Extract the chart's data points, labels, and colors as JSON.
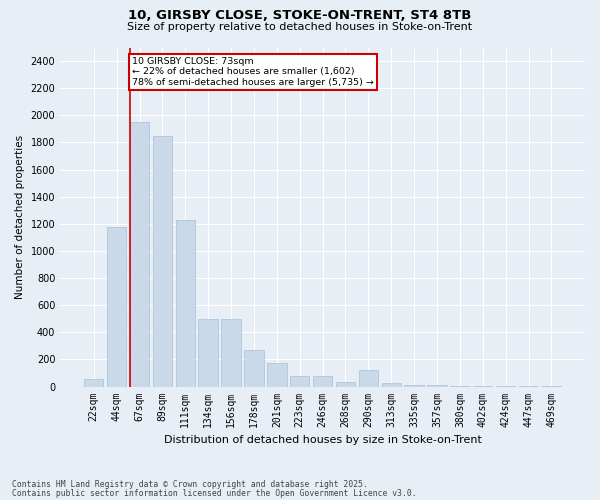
{
  "title1": "10, GIRSBY CLOSE, STOKE-ON-TRENT, ST4 8TB",
  "title2": "Size of property relative to detached houses in Stoke-on-Trent",
  "xlabel": "Distribution of detached houses by size in Stoke-on-Trent",
  "ylabel": "Number of detached properties",
  "categories": [
    "22sqm",
    "44sqm",
    "67sqm",
    "89sqm",
    "111sqm",
    "134sqm",
    "156sqm",
    "178sqm",
    "201sqm",
    "223sqm",
    "246sqm",
    "268sqm",
    "290sqm",
    "313sqm",
    "335sqm",
    "357sqm",
    "380sqm",
    "402sqm",
    "424sqm",
    "447sqm",
    "469sqm"
  ],
  "values": [
    55,
    1175,
    1950,
    1850,
    1225,
    500,
    500,
    270,
    170,
    75,
    75,
    30,
    120,
    25,
    8,
    8,
    5,
    3,
    2,
    3,
    2
  ],
  "bar_color": "#c9d9ea",
  "bar_edge_color": "#a8c0d6",
  "background_color": "#e8eef5",
  "grid_color": "#ffffff",
  "vline_x_index": 2,
  "vline_color": "#cc0000",
  "annotation_text": "10 GIRSBY CLOSE: 73sqm\n← 22% of detached houses are smaller (1,602)\n78% of semi-detached houses are larger (5,735) →",
  "annotation_box_color": "#ffffff",
  "annotation_box_edge": "#cc0000",
  "ylim": [
    0,
    2500
  ],
  "yticks": [
    0,
    200,
    400,
    600,
    800,
    1000,
    1200,
    1400,
    1600,
    1800,
    2000,
    2200,
    2400
  ],
  "footnote1": "Contains HM Land Registry data © Crown copyright and database right 2025.",
  "footnote2": "Contains public sector information licensed under the Open Government Licence v3.0."
}
